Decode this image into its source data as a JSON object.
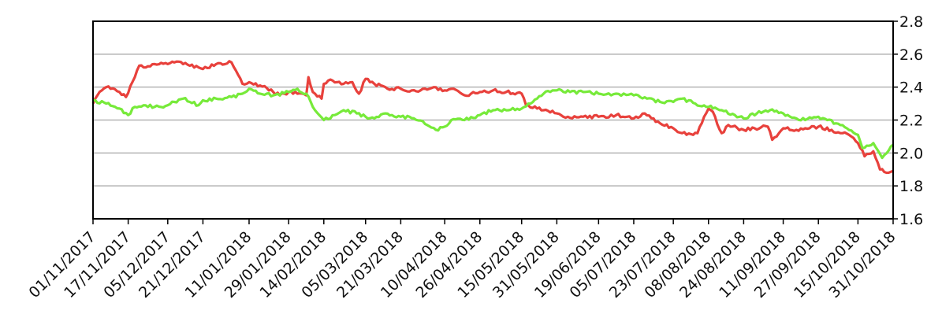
{
  "chart_data": {
    "type": "line",
    "title": "",
    "xlabel": "",
    "ylabel": "",
    "ylim": [
      1.6,
      2.8
    ],
    "y_ticks": [
      1.6,
      1.8,
      2.0,
      2.2,
      2.4,
      2.6,
      2.8
    ],
    "y_tick_labels": [
      "1.6",
      "1.8",
      "2.0",
      "2.2",
      "2.4",
      "2.6",
      "2.8"
    ],
    "y_axis_side": "right",
    "grid": "horizontal",
    "legend": "none",
    "xlim": [
      "2017-11-01",
      "2018-10-31"
    ],
    "x_tick_labels": [
      "01/11/2017",
      "17/11/2017",
      "05/12/2017",
      "21/12/2017",
      "11/01/2018",
      "29/01/2018",
      "14/02/2018",
      "05/03/2018",
      "21/03/2018",
      "10/04/2018",
      "26/04/2018",
      "15/05/2018",
      "31/05/2018",
      "19/06/2018",
      "05/07/2018",
      "23/07/2018",
      "08/08/2018",
      "24/08/2018",
      "11/09/2018",
      "27/09/2018",
      "15/10/2018",
      "31/10/2018"
    ],
    "x_tick_dates": [
      "2017-11-01",
      "2017-11-17",
      "2017-12-05",
      "2017-12-21",
      "2018-01-11",
      "2018-01-29",
      "2018-02-14",
      "2018-03-05",
      "2018-03-21",
      "2018-04-10",
      "2018-04-26",
      "2018-05-15",
      "2018-05-31",
      "2018-06-19",
      "2018-07-05",
      "2018-07-23",
      "2018-08-08",
      "2018-08-24",
      "2018-09-11",
      "2018-09-27",
      "2018-10-15",
      "2018-10-31"
    ],
    "series": [
      {
        "color": "#e8413c",
        "x": [
          "2017-11-01",
          "2017-11-03",
          "2017-11-07",
          "2017-11-09",
          "2017-11-13",
          "2017-11-16",
          "2017-11-20",
          "2017-11-22",
          "2017-11-24",
          "2017-11-29",
          "2017-12-05",
          "2017-12-08",
          "2017-12-12",
          "2017-12-15",
          "2017-12-19",
          "2017-12-21",
          "2017-12-27",
          "2018-01-03",
          "2018-01-05",
          "2018-01-08",
          "2018-01-11",
          "2018-01-16",
          "2018-01-22",
          "2018-01-25",
          "2018-01-29",
          "2018-02-02",
          "2018-02-06",
          "2018-02-07",
          "2018-02-09",
          "2018-02-13",
          "2018-02-14",
          "2018-02-16",
          "2018-02-20",
          "2018-02-23",
          "2018-02-27",
          "2018-03-02",
          "2018-03-05",
          "2018-03-07",
          "2018-03-09",
          "2018-03-12",
          "2018-03-14",
          "2018-03-15",
          "2018-03-21",
          "2018-03-26",
          "2018-03-30",
          "2018-04-05",
          "2018-04-10",
          "2018-04-13",
          "2018-04-19",
          "2018-04-26",
          "2018-05-02",
          "2018-05-08",
          "2018-05-15",
          "2018-05-17",
          "2018-05-22",
          "2018-05-25",
          "2018-05-31",
          "2018-06-05",
          "2018-06-12",
          "2018-06-19",
          "2018-06-27",
          "2018-07-02",
          "2018-07-05",
          "2018-07-10",
          "2018-07-17",
          "2018-07-23",
          "2018-07-27",
          "2018-08-01",
          "2018-08-03",
          "2018-08-06",
          "2018-08-08",
          "2018-08-10",
          "2018-08-14",
          "2018-08-17",
          "2018-08-24",
          "2018-08-29",
          "2018-09-04",
          "2018-09-06",
          "2018-09-11",
          "2018-09-17",
          "2018-09-21",
          "2018-09-27",
          "2018-10-03",
          "2018-10-08",
          "2018-10-12",
          "2018-10-15",
          "2018-10-18",
          "2018-10-22",
          "2018-10-25",
          "2018-10-29",
          "2018-10-31"
        ],
        "y": [
          2.3,
          2.35,
          2.4,
          2.39,
          2.37,
          2.34,
          2.46,
          2.53,
          2.52,
          2.54,
          2.54,
          2.55,
          2.54,
          2.53,
          2.52,
          2.51,
          2.54,
          2.55,
          2.5,
          2.42,
          2.43,
          2.41,
          2.37,
          2.35,
          2.37,
          2.36,
          2.35,
          2.46,
          2.37,
          2.33,
          2.42,
          2.44,
          2.43,
          2.42,
          2.43,
          2.36,
          2.45,
          2.43,
          2.42,
          2.41,
          2.4,
          2.39,
          2.39,
          2.38,
          2.38,
          2.4,
          2.38,
          2.39,
          2.35,
          2.37,
          2.38,
          2.37,
          2.36,
          2.29,
          2.27,
          2.26,
          2.24,
          2.22,
          2.22,
          2.22,
          2.23,
          2.22,
          2.21,
          2.24,
          2.18,
          2.15,
          2.12,
          2.11,
          2.12,
          2.22,
          2.27,
          2.25,
          2.12,
          2.17,
          2.14,
          2.15,
          2.16,
          2.08,
          2.15,
          2.14,
          2.15,
          2.16,
          2.14,
          2.12,
          2.1,
          2.06,
          1.98,
          2.01,
          1.9,
          1.88,
          1.89
        ]
      },
      {
        "color": "#77ea3a",
        "x": [
          "2017-11-01",
          "2017-11-07",
          "2017-11-13",
          "2017-11-17",
          "2017-11-20",
          "2017-11-24",
          "2017-11-29",
          "2017-12-05",
          "2017-12-08",
          "2017-12-12",
          "2017-12-15",
          "2017-12-19",
          "2017-12-21",
          "2017-12-27",
          "2018-01-03",
          "2018-01-08",
          "2018-01-11",
          "2018-01-16",
          "2018-01-22",
          "2018-01-29",
          "2018-02-02",
          "2018-02-06",
          "2018-02-09",
          "2018-02-14",
          "2018-02-19",
          "2018-02-23",
          "2018-03-01",
          "2018-03-05",
          "2018-03-09",
          "2018-03-14",
          "2018-03-21",
          "2018-03-27",
          "2018-04-02",
          "2018-04-06",
          "2018-04-10",
          "2018-04-13",
          "2018-04-19",
          "2018-04-26",
          "2018-05-02",
          "2018-05-09",
          "2018-05-15",
          "2018-05-18",
          "2018-05-22",
          "2018-05-25",
          "2018-05-31",
          "2018-06-06",
          "2018-06-12",
          "2018-06-19",
          "2018-06-27",
          "2018-07-05",
          "2018-07-11",
          "2018-07-17",
          "2018-07-23",
          "2018-07-27",
          "2018-08-02",
          "2018-08-08",
          "2018-08-14",
          "2018-08-20",
          "2018-08-24",
          "2018-08-30",
          "2018-09-05",
          "2018-09-11",
          "2018-09-17",
          "2018-09-21",
          "2018-09-27",
          "2018-10-01",
          "2018-10-05",
          "2018-10-10",
          "2018-10-15",
          "2018-10-17",
          "2018-10-22",
          "2018-10-26",
          "2018-10-31"
        ],
        "y": [
          2.32,
          2.3,
          2.27,
          2.23,
          2.28,
          2.29,
          2.28,
          2.29,
          2.31,
          2.33,
          2.31,
          2.29,
          2.32,
          2.33,
          2.34,
          2.36,
          2.39,
          2.36,
          2.35,
          2.37,
          2.39,
          2.36,
          2.28,
          2.2,
          2.23,
          2.26,
          2.24,
          2.22,
          2.21,
          2.24,
          2.22,
          2.21,
          2.17,
          2.14,
          2.16,
          2.2,
          2.2,
          2.23,
          2.26,
          2.26,
          2.27,
          2.3,
          2.33,
          2.36,
          2.38,
          2.37,
          2.37,
          2.36,
          2.36,
          2.35,
          2.33,
          2.31,
          2.31,
          2.33,
          2.3,
          2.28,
          2.26,
          2.23,
          2.21,
          2.24,
          2.26,
          2.24,
          2.21,
          2.2,
          2.22,
          2.2,
          2.18,
          2.15,
          2.11,
          2.03,
          2.06,
          1.97,
          2.05
        ]
      }
    ]
  }
}
